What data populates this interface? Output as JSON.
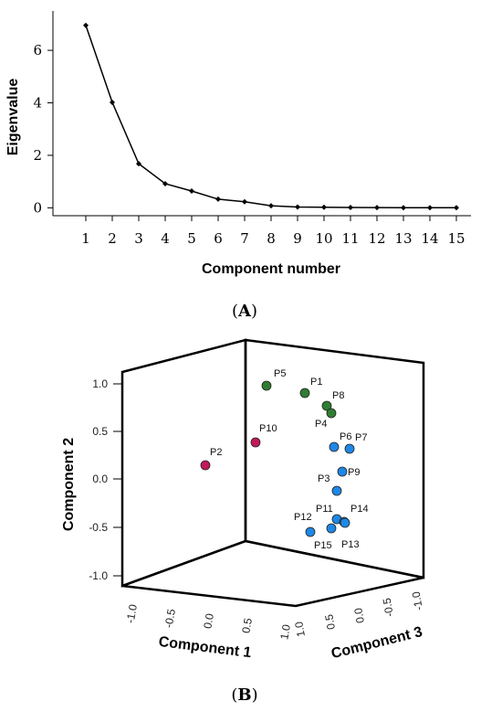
{
  "chart_data": [
    {
      "type": "line",
      "panel_label": "(A)",
      "xlabel": "Component number",
      "ylabel": "Eigenvalue",
      "x": [
        1,
        2,
        3,
        4,
        5,
        6,
        7,
        8,
        9,
        10,
        11,
        12,
        13,
        14,
        15
      ],
      "values": [
        6.95,
        4.02,
        1.68,
        0.92,
        0.64,
        0.33,
        0.23,
        0.08,
        0.03,
        0.02,
        0.015,
        0.01,
        0.005,
        0.005,
        0.003
      ],
      "yticks": [
        0,
        2,
        4,
        6
      ],
      "ylim": [
        -0.3,
        7.5
      ],
      "grid": false,
      "line_color": "#000000"
    },
    {
      "type": "scatter",
      "panel_label": "(B)",
      "xlabel": "Component 1",
      "ylabel": "Component 2",
      "zlabel": "Component 3",
      "xticks": [
        "-1.0",
        "-0.5",
        "0.0",
        "0.5",
        "1.0"
      ],
      "yticks": [
        "1.0",
        "0.5",
        "0.0",
        "-0.5",
        "-1.0"
      ],
      "zticks": [
        "1.0",
        "0.5",
        "0.0",
        "-0.5",
        "-1.0"
      ],
      "group_colors": {
        "green": "#2e7d32",
        "red": "#c2185b",
        "blue": "#1e88e5"
      },
      "points": [
        {
          "label": "P5",
          "group": "green"
        },
        {
          "label": "P1",
          "group": "green"
        },
        {
          "label": "P8",
          "group": "green"
        },
        {
          "label": "P4",
          "group": "green"
        },
        {
          "label": "P10",
          "group": "red"
        },
        {
          "label": "P2",
          "group": "red"
        },
        {
          "label": "P6",
          "group": "blue"
        },
        {
          "label": "P7",
          "group": "blue"
        },
        {
          "label": "P9",
          "group": "blue"
        },
        {
          "label": "P3",
          "group": "blue"
        },
        {
          "label": "P11",
          "group": "blue"
        },
        {
          "label": "P14",
          "group": "blue"
        },
        {
          "label": "P12",
          "group": "blue"
        },
        {
          "label": "P15",
          "group": "blue"
        },
        {
          "label": "P13",
          "group": "blue"
        }
      ]
    }
  ]
}
